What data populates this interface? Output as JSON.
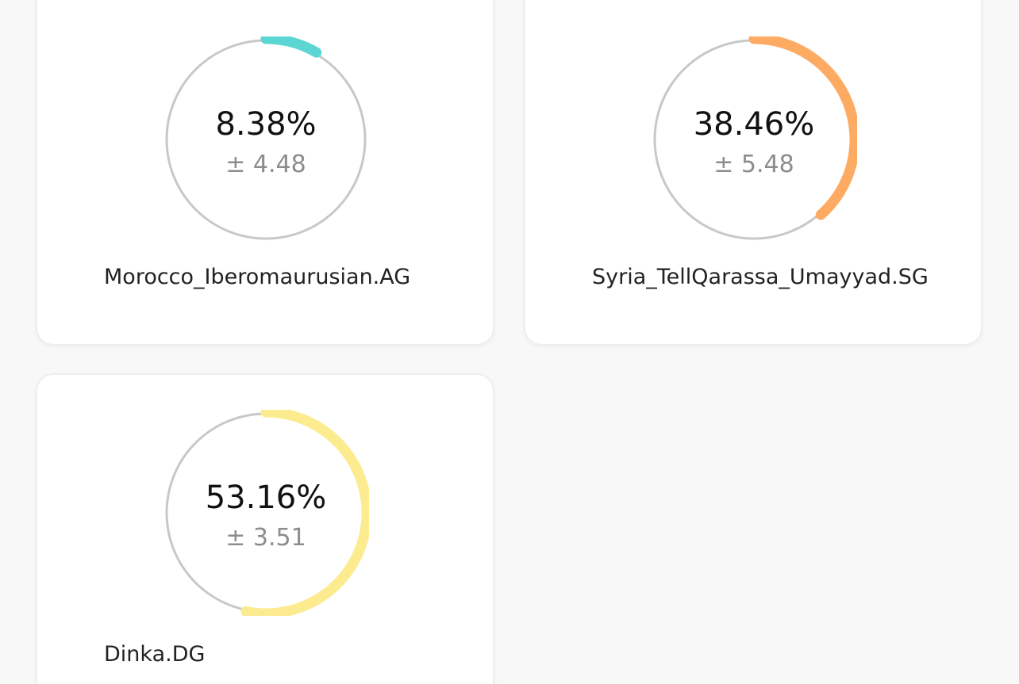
{
  "cards": [
    {
      "percent_text": "8.38%",
      "error_text": "± 4.48",
      "label": "Morocco_Iberomaurusian.AG",
      "fraction": 0.0838,
      "color": "#5cd6d2"
    },
    {
      "percent_text": "38.46%",
      "error_text": "± 5.48",
      "label": "Syria_TellQarassa_Umayyad.SG",
      "fraction": 0.3846,
      "color": "#fdab63"
    },
    {
      "percent_text": "53.16%",
      "error_text": "± 3.51",
      "label": "Dinka.DG",
      "fraction": 0.5316,
      "color": "#fdeb8f"
    }
  ],
  "colors": {
    "track": "#c8c8c8",
    "card_background": "#ffffff",
    "page_background": "#f9f8f8"
  }
}
